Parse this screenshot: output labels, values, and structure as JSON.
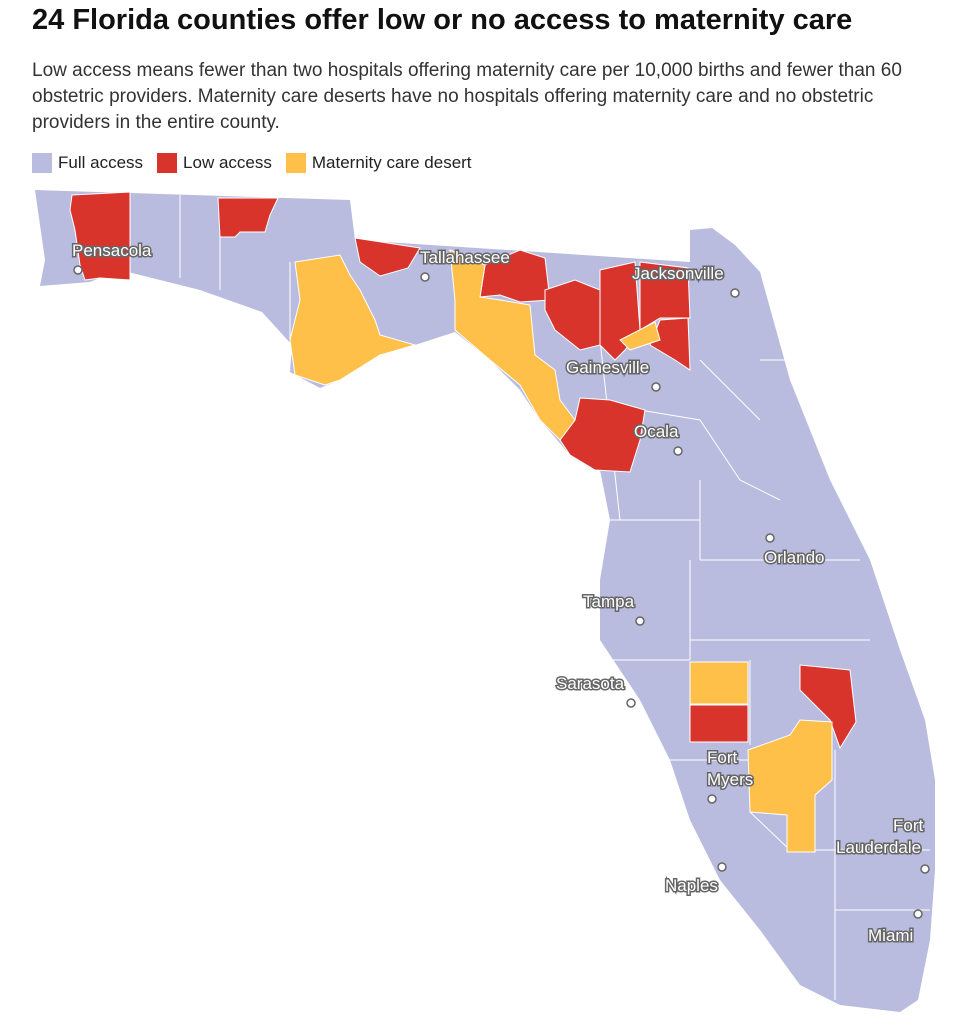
{
  "title": "24 Florida counties offer low or no access to maternity care",
  "subtitle": "Low access means fewer than two hospitals offering maternity care per 10,000 births and fewer than 60 obstetric providers. Maternity care deserts have no hospitals offering maternity care and no obstetric providers in the entire county.",
  "legend": [
    {
      "label": "Full access",
      "color": "#b9bcde"
    },
    {
      "label": "Low access",
      "color": "#d9342b"
    },
    {
      "label": "Maternity care desert",
      "color": "#ffc04a"
    }
  ],
  "cities": [
    "Pensacola",
    "Tallahassee",
    "Jacksonville",
    "Gainesville",
    "Ocala",
    "Orlando",
    "Tampa",
    "Sarasota",
    "Fort Myers",
    "Naples",
    "Fort Lauderdale",
    "Miami"
  ],
  "city_lines": {
    "fort_myers": [
      "Fort",
      "Myers"
    ],
    "fort_lauderdale": [
      "Fort",
      "Lauderdale"
    ]
  }
}
